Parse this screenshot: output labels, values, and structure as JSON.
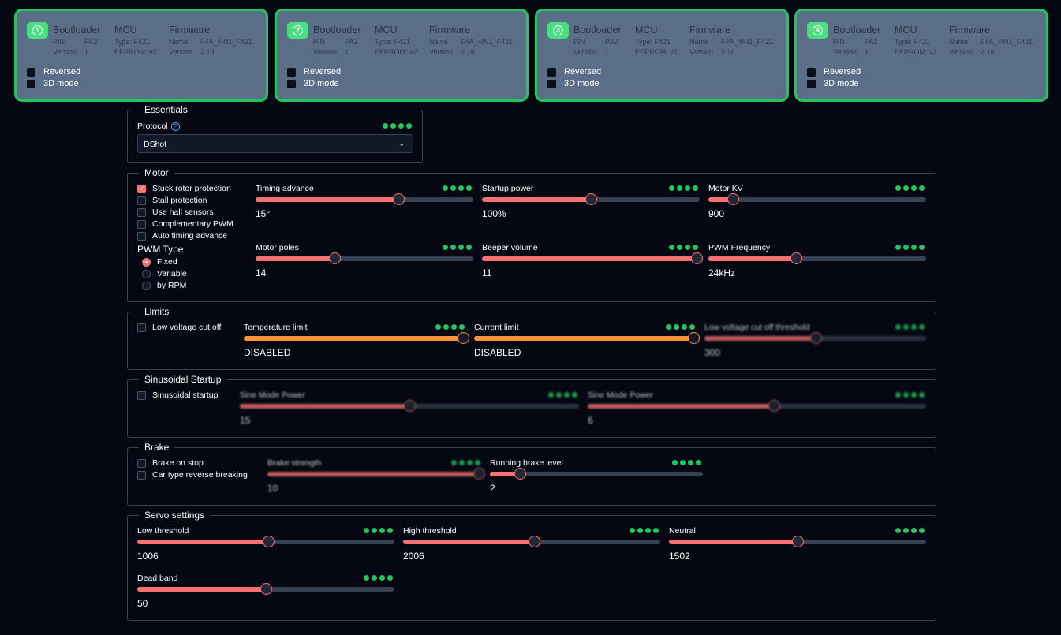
{
  "escs": [
    {
      "num": "1",
      "bootloader": {
        "title": "Bootloader",
        "pin_label": "PIN",
        "pin": "PA2",
        "version_label": "Version",
        "version": "1"
      },
      "mcu": {
        "title": "MCU",
        "type": "Type: F421",
        "eeprom": "EEPROM: v2"
      },
      "firmware": {
        "title": "Firmware",
        "name_label": "Name",
        "name": "F4A_4IN1_F421",
        "version_label": "Version",
        "version": "2.18"
      },
      "reversed": "Reversed",
      "mode3d": "3D mode"
    },
    {
      "num": "2",
      "bootloader": {
        "title": "Bootloader",
        "pin_label": "PIN",
        "pin": "PA2",
        "version_label": "Version",
        "version": "1"
      },
      "mcu": {
        "title": "MCU",
        "type": "Type: F421",
        "eeprom": "EEPROM: v2"
      },
      "firmware": {
        "title": "Firmware",
        "name_label": "Name",
        "name": "F4A_4IN1_F421",
        "version_label": "Version",
        "version": "2.18"
      },
      "reversed": "Reversed",
      "mode3d": "3D mode"
    },
    {
      "num": "3",
      "bootloader": {
        "title": "Bootloader",
        "pin_label": "PIN",
        "pin": "PA2",
        "version_label": "Version",
        "version": "1"
      },
      "mcu": {
        "title": "MCU",
        "type": "Type: F421",
        "eeprom": "EEPROM: v2"
      },
      "firmware": {
        "title": "Firmware",
        "name_label": "Name",
        "name": "F4A_4IN1_F421",
        "version_label": "Version",
        "version": "2.18"
      },
      "reversed": "Reversed",
      "mode3d": "3D mode"
    },
    {
      "num": "4",
      "bootloader": {
        "title": "Bootloader",
        "pin_label": "PIN",
        "pin": "PA2",
        "version_label": "Version",
        "version": "1"
      },
      "mcu": {
        "title": "MCU",
        "type": "Type: F421",
        "eeprom": "EEPROM: v2"
      },
      "firmware": {
        "title": "Firmware",
        "name_label": "Name",
        "name": "F4A_4IN1_F421",
        "version_label": "Version",
        "version": "2.18"
      },
      "reversed": "Reversed",
      "mode3d": "3D mode"
    }
  ],
  "essentials": {
    "title": "Essentials",
    "protocol_label": "Protocol",
    "protocol_value": "DShot"
  },
  "motor": {
    "title": "Motor",
    "checkboxes": [
      {
        "label": "Stuck rotor protection",
        "checked": true
      },
      {
        "label": "Stall protection",
        "checked": false
      },
      {
        "label": "Use hall sensors",
        "checked": false
      },
      {
        "label": "Complementary PWM",
        "checked": false
      },
      {
        "label": "Auto timing advance",
        "checked": false
      }
    ],
    "pwm_type_label": "PWM Type",
    "pwm_types": [
      {
        "label": "Fixed",
        "selected": true
      },
      {
        "label": "Variable",
        "selected": false
      },
      {
        "label": "by RPM",
        "selected": false
      }
    ],
    "sliders": [
      {
        "label": "Timing advance",
        "value": "15°",
        "fraction": 0.66
      },
      {
        "label": "Startup power",
        "value": "100%",
        "fraction": 0.5
      },
      {
        "label": "Motor KV",
        "value": "900",
        "fraction": 0.1
      },
      {
        "label": "Motor poles",
        "value": "14",
        "fraction": 0.36
      },
      {
        "label": "Beeper volume",
        "value": "11",
        "fraction": 1.0
      },
      {
        "label": "PWM Frequency",
        "value": "24kHz",
        "fraction": 0.4
      }
    ]
  },
  "limits": {
    "title": "Limits",
    "low_voltage_cutoff": "Low voltage cut off",
    "sliders": [
      {
        "label": "Temperature limit",
        "value": "DISABLED",
        "fraction": 1.0
      },
      {
        "label": "Current limit",
        "value": "DISABLED",
        "fraction": 1.0
      },
      {
        "label": "Low voltage cut off threshold",
        "value": "300",
        "fraction": 0.5
      }
    ]
  },
  "sinusoidal": {
    "title": "Sinusoidal Startup",
    "checkbox": "Sinusoidal startup",
    "sliders": [
      {
        "label": "Sine Mode Power",
        "value": "15",
        "fraction": 0.5
      },
      {
        "label": "Sine Mode Power",
        "value": "6",
        "fraction": 0.55
      }
    ]
  },
  "brake": {
    "title": "Brake",
    "checkboxes": [
      "Brake on stop",
      "Car type reverse breaking"
    ],
    "sliders": [
      {
        "label": "Brake strength",
        "value": "10",
        "fraction": 1.0
      },
      {
        "label": "Running brake level",
        "value": "2",
        "fraction": 0.13
      }
    ]
  },
  "servo": {
    "title": "Servo settings",
    "sliders": [
      {
        "label": "Low threshold",
        "value": "1006",
        "fraction": 0.51
      },
      {
        "label": "High threshold",
        "value": "2006",
        "fraction": 0.51
      },
      {
        "label": "Neutral",
        "value": "1502",
        "fraction": 0.5
      },
      {
        "label": "Dead band",
        "value": "50",
        "fraction": 0.5
      }
    ]
  },
  "colors": {
    "accent": "#f87171",
    "orange": "#fb923c",
    "green": "#22c55e",
    "esc_bg": "#5b6e87"
  }
}
